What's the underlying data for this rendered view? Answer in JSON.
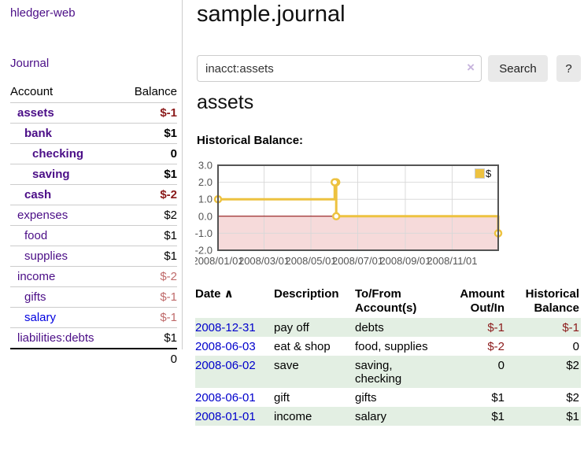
{
  "sidebar": {
    "app_title": "hledger-web",
    "journal_link": "Journal",
    "table": {
      "headers": {
        "account": "Account",
        "balance": "Balance"
      },
      "rows": [
        {
          "name": "assets",
          "balance": "$-1",
          "indent": 1,
          "bold": true,
          "neg": "strong"
        },
        {
          "name": "bank",
          "balance": "$1",
          "indent": 2,
          "bold": true
        },
        {
          "name": "checking",
          "balance": "0",
          "indent": 3,
          "bold": true
        },
        {
          "name": "saving",
          "balance": "$1",
          "indent": 3,
          "bold": true
        },
        {
          "name": "cash",
          "balance": "$-2",
          "indent": 2,
          "bold": true,
          "neg": "strong"
        },
        {
          "name": "expenses",
          "balance": "$2",
          "indent": 1
        },
        {
          "name": "food",
          "balance": "$1",
          "indent": 2
        },
        {
          "name": "supplies",
          "balance": "$1",
          "indent": 2
        },
        {
          "name": "income",
          "balance": "$-2",
          "indent": 1,
          "neg": "soft"
        },
        {
          "name": "gifts",
          "balance": "$-1",
          "indent": 2,
          "neg": "soft"
        },
        {
          "name": "salary",
          "balance": "$-1",
          "indent": 2,
          "neg": "soft",
          "color": "blue"
        },
        {
          "name": "liabilities:debts",
          "balance": "$1",
          "indent": 1
        }
      ],
      "total": "0"
    }
  },
  "main": {
    "page_title": "sample.journal",
    "search": {
      "value": "inacct:assets",
      "clear_icon": "×",
      "button_label": "Search",
      "help_label": "?"
    },
    "account_heading": "assets",
    "chart_label": "Historical Balance:"
  },
  "chart_data": {
    "type": "line",
    "step": true,
    "title": "Historical Balance",
    "x_start": "2008-01-01",
    "x_end": "2008-12-31",
    "ylim": [
      -2,
      3
    ],
    "yticks": [
      3.0,
      2.0,
      1.0,
      0.0,
      -1.0,
      -2.0
    ],
    "xticks": [
      {
        "date": "2008-01-01",
        "label": "2008/01/01"
      },
      {
        "date": "2008-03-01",
        "label": "2008/03/01"
      },
      {
        "date": "2008-05-01",
        "label": "2008/05/01"
      },
      {
        "date": "2008-07-01",
        "label": "2008/07/01"
      },
      {
        "date": "2008-09-01",
        "label": "2008/09/01"
      },
      {
        "date": "2008-11-01",
        "label": "2008/11/01"
      }
    ],
    "series": [
      {
        "name": "$",
        "color": "#edc240",
        "points": [
          {
            "x": "2008-01-01",
            "y": 1
          },
          {
            "x": "2008-06-01",
            "y": 2
          },
          {
            "x": "2008-06-03",
            "y": 0
          },
          {
            "x": "2008-12-31",
            "y": -1
          }
        ]
      }
    ],
    "legend_position": "top-right",
    "grid": true,
    "negative_region_fill": "#f6dada",
    "zero_line_color": "#8b0000",
    "border_color": "#545454"
  },
  "register": {
    "columns": [
      {
        "lines": [
          "Date"
        ],
        "align": "left",
        "sort_icon": "∧"
      },
      {
        "lines": [
          "Description"
        ],
        "align": "left"
      },
      {
        "lines": [
          "To/From",
          "Account(s)"
        ],
        "align": "left"
      },
      {
        "lines": [
          "Amount",
          "Out/In"
        ],
        "align": "right"
      },
      {
        "lines": [
          "Historical",
          "Balance"
        ],
        "align": "right"
      }
    ],
    "rows": [
      {
        "date": "2008-12-31",
        "description": "pay off",
        "accounts": "debts",
        "amount": "$-1",
        "amount_neg": true,
        "balance": "$-1",
        "balance_neg": true,
        "shade": true
      },
      {
        "date": "2008-06-03",
        "description": "eat & shop",
        "accounts": "food, supplies",
        "amount": "$-2",
        "amount_neg": true,
        "balance": "0",
        "balance_neg": false,
        "shade": false
      },
      {
        "date": "2008-06-02",
        "description": "save",
        "accounts": "saving, checking",
        "accounts_wrapped": true,
        "amount": "0",
        "amount_neg": false,
        "balance": "$2",
        "balance_neg": false,
        "shade": true
      },
      {
        "date": "2008-06-01",
        "description": "gift",
        "accounts": "gifts",
        "amount": "$1",
        "amount_neg": false,
        "balance": "$2",
        "balance_neg": false,
        "shade": false
      },
      {
        "date": "2008-01-01",
        "description": "income",
        "accounts": "salary",
        "amount": "$1",
        "amount_neg": false,
        "balance": "$1",
        "balance_neg": false,
        "shade": true
      }
    ]
  },
  "colors": {
    "accent_purple": "#4b0e87",
    "link_blue": "#0000cc",
    "salary_link_blue": "#0000e0",
    "negative_strong": "#8b1a1a",
    "negative_soft": "#bf6a6a",
    "row_green": "#e3efe3",
    "chart_line_gold": "#edc240",
    "chart_negative_region": "#f6dada",
    "chart_zero_line": "#8b0000"
  }
}
